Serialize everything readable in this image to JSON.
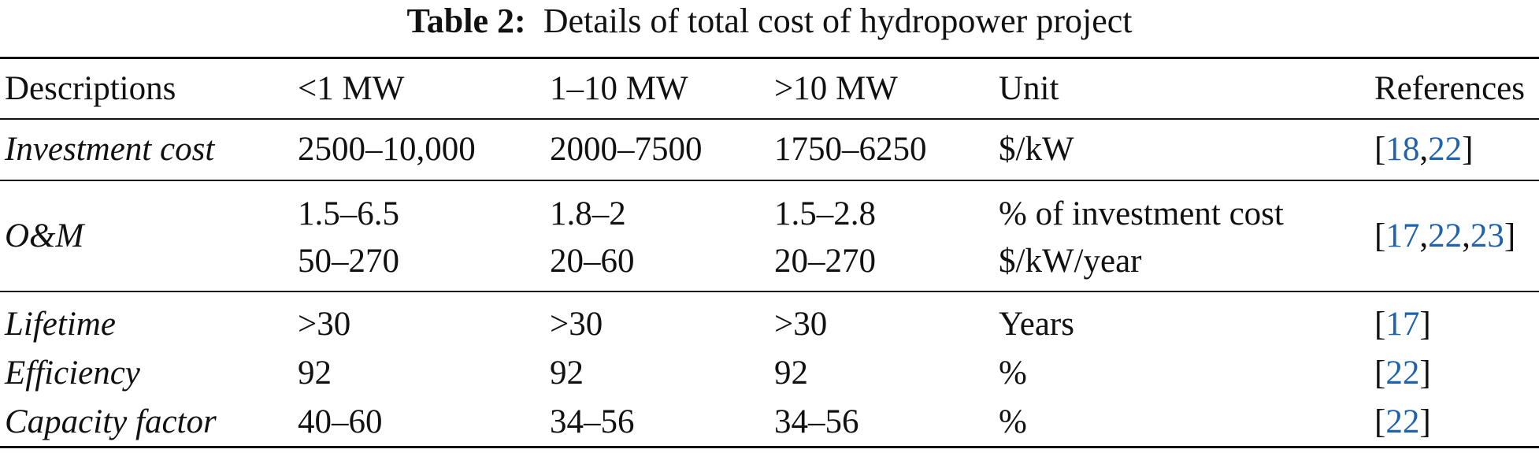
{
  "caption": {
    "label": "Table 2:",
    "title": "Details of total cost of hydropower project"
  },
  "header": {
    "descriptions": "Descriptions",
    "col1": "<1 MW",
    "col2": "1–10 MW",
    "col3": ">10 MW",
    "unit": "Unit",
    "references": "References"
  },
  "rows": {
    "investment": {
      "label": "Investment cost",
      "v1": "2500–10,000",
      "v2": "2000–7500",
      "v3": "1750–6250",
      "unit": "$/kW",
      "refs": [
        "18",
        "22"
      ]
    },
    "om": {
      "label": "O&M",
      "v1a": "1.5–6.5",
      "v1b": "50–270",
      "v2a": "1.8–2",
      "v2b": "20–60",
      "v3a": "1.5–2.8",
      "v3b": "20–270",
      "unit_a": "% of investment cost",
      "unit_b": "$/kW/year",
      "refs": [
        "17",
        "22",
        "23"
      ]
    },
    "lifetime": {
      "label": "Lifetime",
      "v1": ">30",
      "v2": ">30",
      "v3": ">30",
      "unit": "Years",
      "refs": [
        "17"
      ]
    },
    "efficiency": {
      "label": "Efficiency",
      "v1": "92",
      "v2": "92",
      "v3": "92",
      "unit": "%",
      "refs": [
        "22"
      ]
    },
    "capacity": {
      "label": "Capacity factor",
      "v1": "40–60",
      "v2": "34–56",
      "v3": "34–56",
      "unit": "%",
      "refs": [
        "22"
      ]
    }
  }
}
